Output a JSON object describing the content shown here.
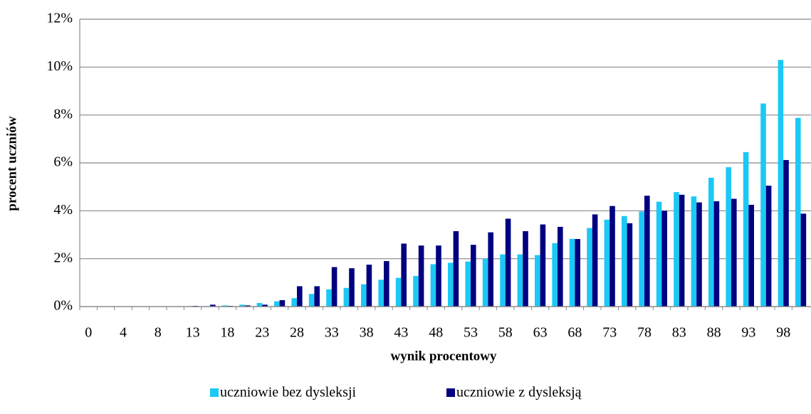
{
  "chart_data": {
    "type": "bar",
    "y_label": "procent uczniów",
    "x_label": "wynik procentowy",
    "categories": [
      "0",
      null,
      "4",
      null,
      "8",
      null,
      "13",
      null,
      "18",
      null,
      "23",
      null,
      "28",
      null,
      "33",
      null,
      "38",
      null,
      "43",
      null,
      "48",
      null,
      "53",
      null,
      "58",
      null,
      "63",
      null,
      "68",
      null,
      "73",
      null,
      "78",
      null,
      "83",
      null,
      "88",
      null,
      "93",
      null,
      "98",
      null
    ],
    "series": [
      {
        "name": "uczniowie bez dysleksji",
        "color": "#1cc8f5",
        "values": [
          0,
          0,
          0,
          0,
          0,
          0,
          0.02,
          0.02,
          0.05,
          0.08,
          0.15,
          0.22,
          0.35,
          0.53,
          0.72,
          0.78,
          0.93,
          1.12,
          1.2,
          1.28,
          1.77,
          1.83,
          1.88,
          2.0,
          2.18,
          2.18,
          2.15,
          2.65,
          2.83,
          3.28,
          3.63,
          3.78,
          3.97,
          4.38,
          4.78,
          4.6,
          5.38,
          5.82,
          6.45,
          8.48,
          10.3,
          7.88
        ]
      },
      {
        "name": "uczniowie z dysleksją",
        "color": "#000080",
        "values": [
          0,
          0,
          0,
          0,
          0,
          0,
          0.03,
          0.08,
          0.03,
          0.05,
          0.08,
          0.27,
          0.85,
          0.85,
          1.65,
          1.6,
          1.75,
          1.9,
          2.63,
          2.55,
          2.55,
          3.15,
          2.58,
          3.1,
          3.67,
          3.15,
          3.43,
          3.33,
          2.82,
          3.85,
          4.2,
          3.48,
          4.63,
          4.0,
          4.67,
          4.35,
          4.4,
          4.5,
          4.25,
          5.05,
          6.12,
          3.88
        ]
      }
    ],
    "ylim": [
      0,
      12
    ],
    "yticks": [
      {
        "value": 0,
        "label": "0%"
      },
      {
        "value": 2,
        "label": "2%"
      },
      {
        "value": 4,
        "label": "4%"
      },
      {
        "value": 6,
        "label": "6%"
      },
      {
        "value": 8,
        "label": "8%"
      },
      {
        "value": 10,
        "label": "10%"
      },
      {
        "value": 12,
        "label": "12%"
      }
    ],
    "grid": true,
    "legend": "bottom"
  }
}
